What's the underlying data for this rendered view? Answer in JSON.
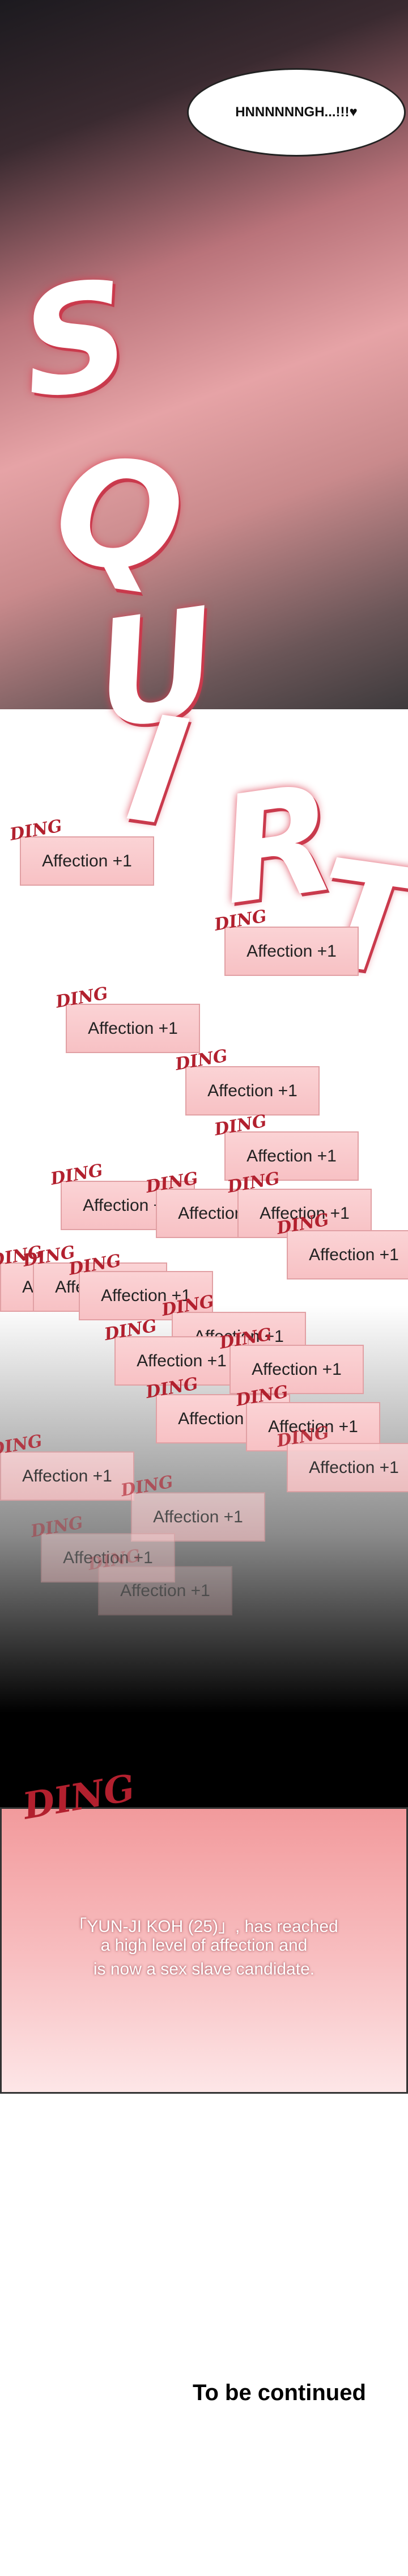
{
  "speech": "HNNNNNNGH...!!!♥",
  "sfx": [
    "S",
    "Q",
    "U",
    "I",
    "R",
    "T"
  ],
  "notifications": [
    {
      "sfx": "DING",
      "text": "Affection +1"
    },
    {
      "sfx": "DING",
      "text": "Affection +1"
    },
    {
      "sfx": "DING",
      "text": "Affection +1"
    },
    {
      "sfx": "DING",
      "text": "Affection +1"
    },
    {
      "sfx": "DING",
      "text": "Affection +1"
    },
    {
      "sfx": "DING",
      "text": "Affection +1"
    },
    {
      "sfx": "DING",
      "text": "Affection +1"
    },
    {
      "sfx": "DING",
      "text": "Affection +1"
    },
    {
      "sfx": "DING",
      "text": "Affection +1"
    },
    {
      "sfx": "DING",
      "text": "Affection +1"
    },
    {
      "sfx": "DING",
      "text": "Affection +1"
    },
    {
      "sfx": "DING",
      "text": "Affection +1"
    },
    {
      "sfx": "DING",
      "text": "Affection +1"
    },
    {
      "sfx": "DING",
      "text": "Affection +1"
    },
    {
      "sfx": "DING",
      "text": "Affection +1"
    },
    {
      "sfx": "DING",
      "text": "Affection +1"
    },
    {
      "sfx": "DING",
      "text": "Affection +1"
    },
    {
      "sfx": "DING",
      "text": "Affection +1"
    },
    {
      "sfx": "DING",
      "text": "Affection +1"
    },
    {
      "sfx": "DING",
      "text": "Affection +1"
    },
    {
      "sfx": "DING",
      "text": "Affection +1"
    },
    {
      "sfx": "DING",
      "text": "Affection +1"
    }
  ],
  "message": {
    "sfx": "DING",
    "lines": [
      "「YUN-JI KOH (25)」, has reached",
      "a high level of affection and",
      "is now a sex slave candidate."
    ]
  },
  "footer": "To be continued"
}
